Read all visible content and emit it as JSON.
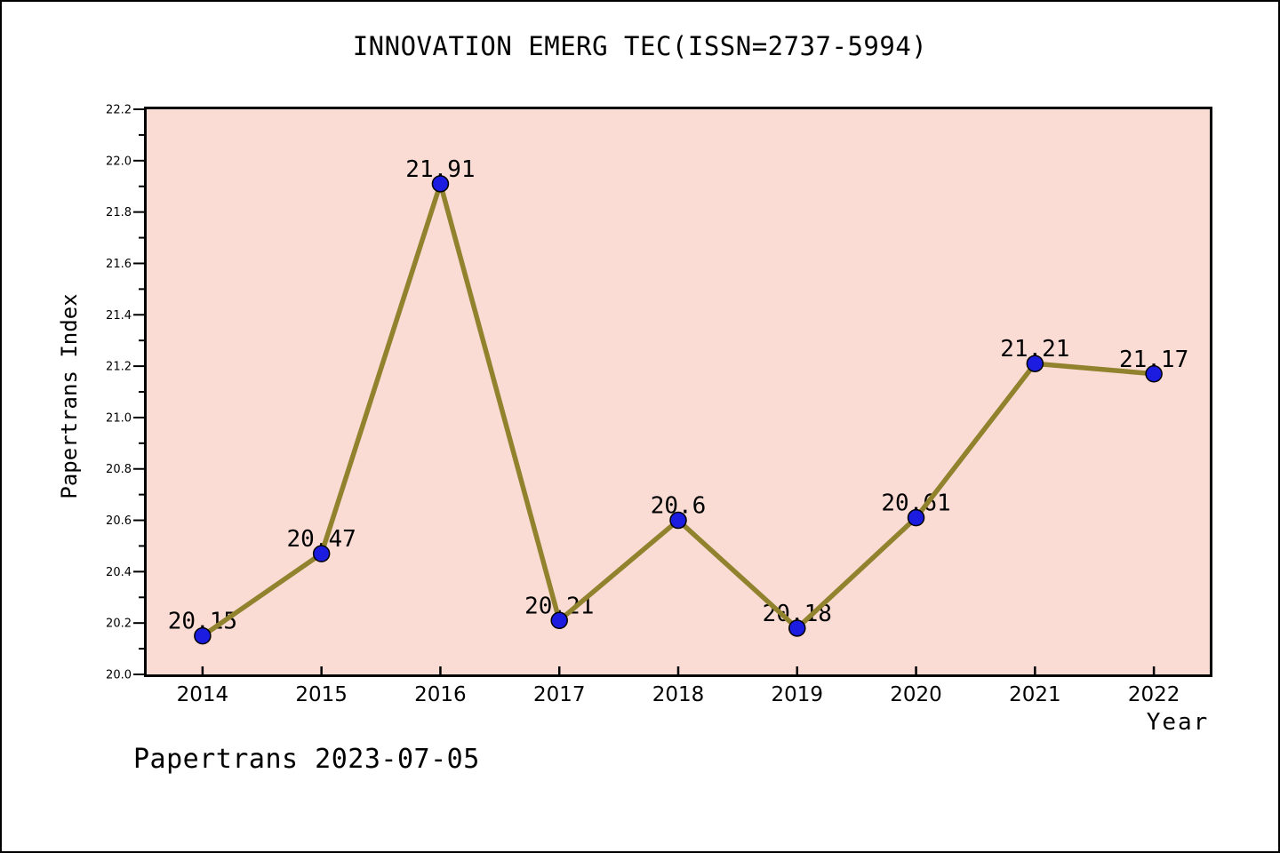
{
  "window": {
    "background": "#ffffff",
    "border_color": "#000000"
  },
  "chart_data": {
    "type": "line",
    "title": "INNOVATION EMERG TEC(ISSN=2737-5994)",
    "xlabel": "Year",
    "ylabel": "Papertrans Index",
    "x": [
      2014,
      2015,
      2016,
      2017,
      2018,
      2019,
      2020,
      2021,
      2022
    ],
    "values": [
      20.15,
      20.47,
      21.91,
      20.21,
      20.6,
      20.18,
      20.61,
      21.21,
      21.17
    ],
    "point_labels": [
      "20.15",
      "20.47",
      "21.91",
      "20.21",
      "20.6",
      "20.18",
      "20.61",
      "21.21",
      "21.17"
    ],
    "x_tick_labels": [
      "2014",
      "2015",
      "2016",
      "2017",
      "2018",
      "2019",
      "2020",
      "2021",
      "2022"
    ],
    "y_tick_labels": [
      "20.0",
      "20.2",
      "20.4",
      "20.6",
      "20.8",
      "21.0",
      "21.2",
      "21.4",
      "21.6",
      "21.8",
      "22.0",
      "22.2"
    ],
    "y_minor_ticks": [
      20.1,
      20.3,
      20.5,
      20.7,
      20.9,
      21.1,
      21.3,
      21.5,
      21.7,
      21.9,
      22.1
    ],
    "xlim": [
      2013.53,
      2022.47
    ],
    "ylim": [
      20.0,
      22.2
    ],
    "grid": false,
    "legend": "none",
    "colors": {
      "plot_background": "#fbdcd5",
      "line": "#91822e",
      "marker_fill": "#1c1ce0",
      "marker_edge": "#000000",
      "axis": "#000000",
      "text": "#000000"
    }
  },
  "footer": {
    "text": "Papertrans 2023-07-05"
  }
}
